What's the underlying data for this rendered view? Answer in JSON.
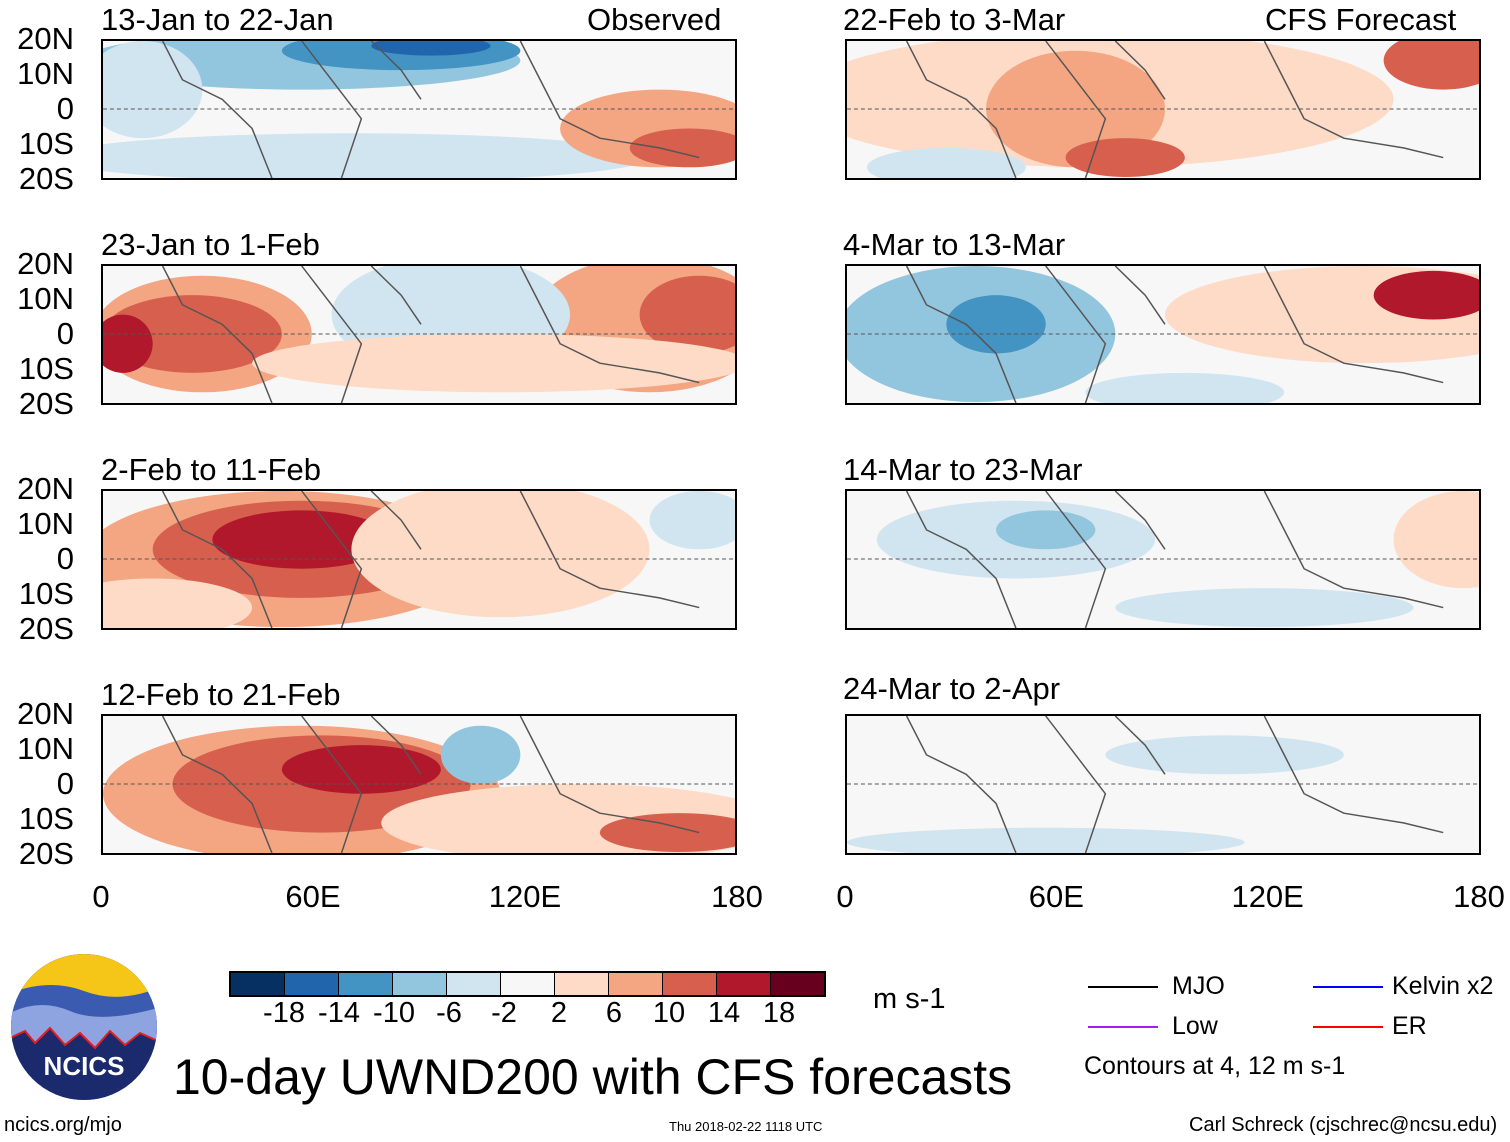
{
  "panels": {
    "left": [
      {
        "title": "13-Jan to 22-Jan",
        "label": "Observed"
      },
      {
        "title": "23-Jan to 1-Feb"
      },
      {
        "title": "2-Feb to 11-Feb"
      },
      {
        "title": "12-Feb to 21-Feb"
      }
    ],
    "right": [
      {
        "title": "22-Feb to 3-Mar",
        "label": "CFS Forecast"
      },
      {
        "title": "4-Mar to 13-Mar"
      },
      {
        "title": "14-Mar to 23-Mar"
      },
      {
        "title": "24-Mar to 2-Apr"
      }
    ]
  },
  "lat_labels": [
    "20N",
    "10N",
    "0",
    "10S",
    "20S"
  ],
  "lon_labels": [
    "0",
    "60E",
    "120E",
    "180"
  ],
  "colorbar": {
    "colors": [
      "#053061",
      "#2166ac",
      "#4393c3",
      "#92c5de",
      "#d1e5f0",
      "#f7f7f7",
      "#fddbc7",
      "#f4a582",
      "#d6604d",
      "#b2182b",
      "#67001f"
    ],
    "ticks": [
      "-18",
      "-14",
      "-10",
      "-6",
      "-2",
      "2",
      "6",
      "10",
      "14",
      "18"
    ],
    "units": "m s-1"
  },
  "legend": {
    "items": [
      {
        "label": "MJO",
        "color": "#000000"
      },
      {
        "label": "Kelvin x2",
        "color": "#0000ff"
      },
      {
        "label": "Low",
        "color": "#a020f0"
      },
      {
        "label": "ER",
        "color": "#ff0000"
      }
    ],
    "note": "Contours at 4, 12 m s-1"
  },
  "logo_text": "NCICS",
  "title": "10-day UWND200 with CFS forecasts",
  "footer": {
    "url": "ncics.org/mjo",
    "timestamp": "Thu 2018-02-22 1118 UTC",
    "author": "Carl Schreck (cjschrec@ncsu.edu)"
  }
}
